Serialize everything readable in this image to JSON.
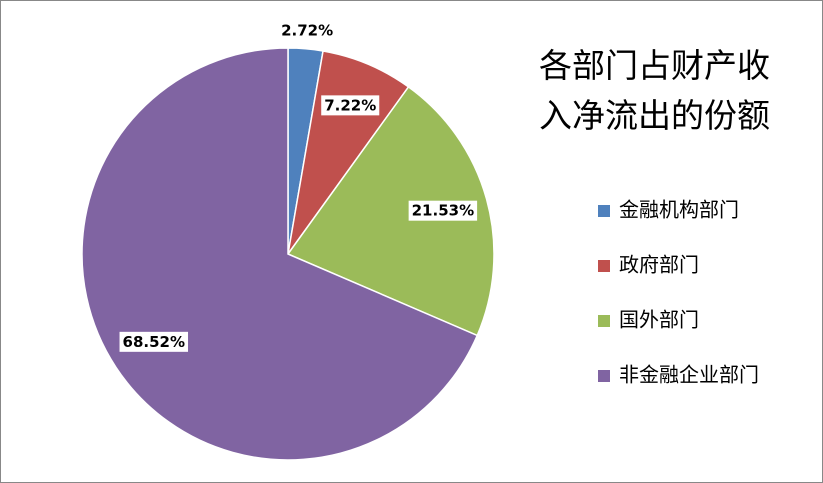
{
  "chart_data": {
    "type": "pie",
    "title": "各部门占财产收入净流出的份额",
    "categories": [
      "金融机构部门",
      "政府部门",
      "国外部门",
      "非金融企业部门"
    ],
    "values": [
      2.72,
      7.22,
      21.53,
      68.52
    ],
    "value_labels": [
      "2.72%",
      "7.22%",
      "21.53%",
      "68.52%"
    ],
    "colors": [
      "#4f81bd",
      "#c0504d",
      "#9bbb59",
      "#8064a2"
    ],
    "legend": "right"
  }
}
